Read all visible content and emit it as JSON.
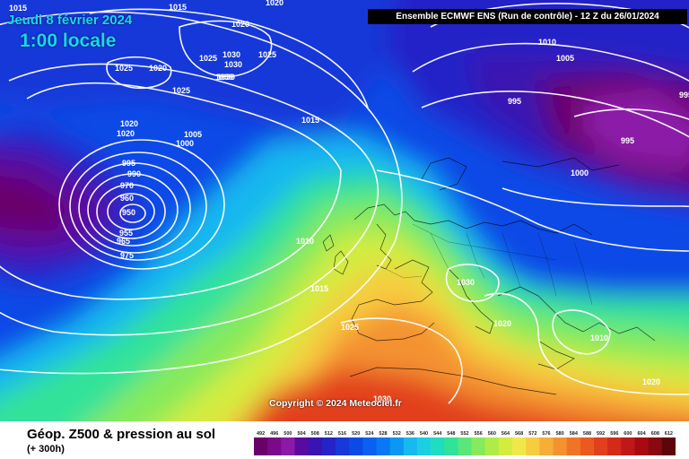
{
  "header": {
    "date": "Jeudi 8 février 2024",
    "time": "1:00 locale",
    "model": "Ensemble ECMWF ENS  (Run de contrôle)  -  12 Z du 26/01/2024"
  },
  "copyright": "Copyright © 2024 Meteociel.fr",
  "footer": {
    "title": "Géop. Z500 & pression au sol",
    "subtitle": "(+ 300h)"
  },
  "isobar_labels": [
    "1015",
    "1015",
    "1020",
    "1020",
    "1025",
    "1020",
    "1025",
    "1030",
    "1030",
    "1030",
    "1025",
    "1030",
    "1025",
    "1020",
    "1020",
    "1000",
    "1005",
    "995",
    "990",
    "970",
    "960",
    "950",
    "955",
    "965",
    "975",
    "1015",
    "1010",
    "1015",
    "1025",
    "1010",
    "1005",
    "995",
    "995",
    "995",
    "1000",
    "1030",
    "1020",
    "1010",
    "1020",
    "1030"
  ],
  "color_scale": {
    "labels": [
      "492",
      "496",
      "500",
      "504",
      "508",
      "512",
      "516",
      "520",
      "524",
      "528",
      "532",
      "536",
      "540",
      "544",
      "548",
      "552",
      "556",
      "560",
      "564",
      "568",
      "572",
      "576",
      "580",
      "584",
      "588",
      "592",
      "596",
      "600",
      "604",
      "608",
      "612"
    ],
    "colors": [
      "#6a006a",
      "#7a0a8a",
      "#8c1aa8",
      "#5a0aa0",
      "#3a14b0",
      "#2424c8",
      "#1838d8",
      "#0a4ae6",
      "#0a60f0",
      "#0878f4",
      "#0a98f2",
      "#18b8f0",
      "#1ad0e0",
      "#20dcc0",
      "#30e29a",
      "#5ae678",
      "#86ea5c",
      "#b0ec48",
      "#d4ec40",
      "#f0e848",
      "#f6cc40",
      "#f6ae38",
      "#f49230",
      "#f07428",
      "#ea5a20",
      "#e2401c",
      "#d42a18",
      "#c01818",
      "#a80a14",
      "#8a0810",
      "#5c0608"
    ]
  }
}
